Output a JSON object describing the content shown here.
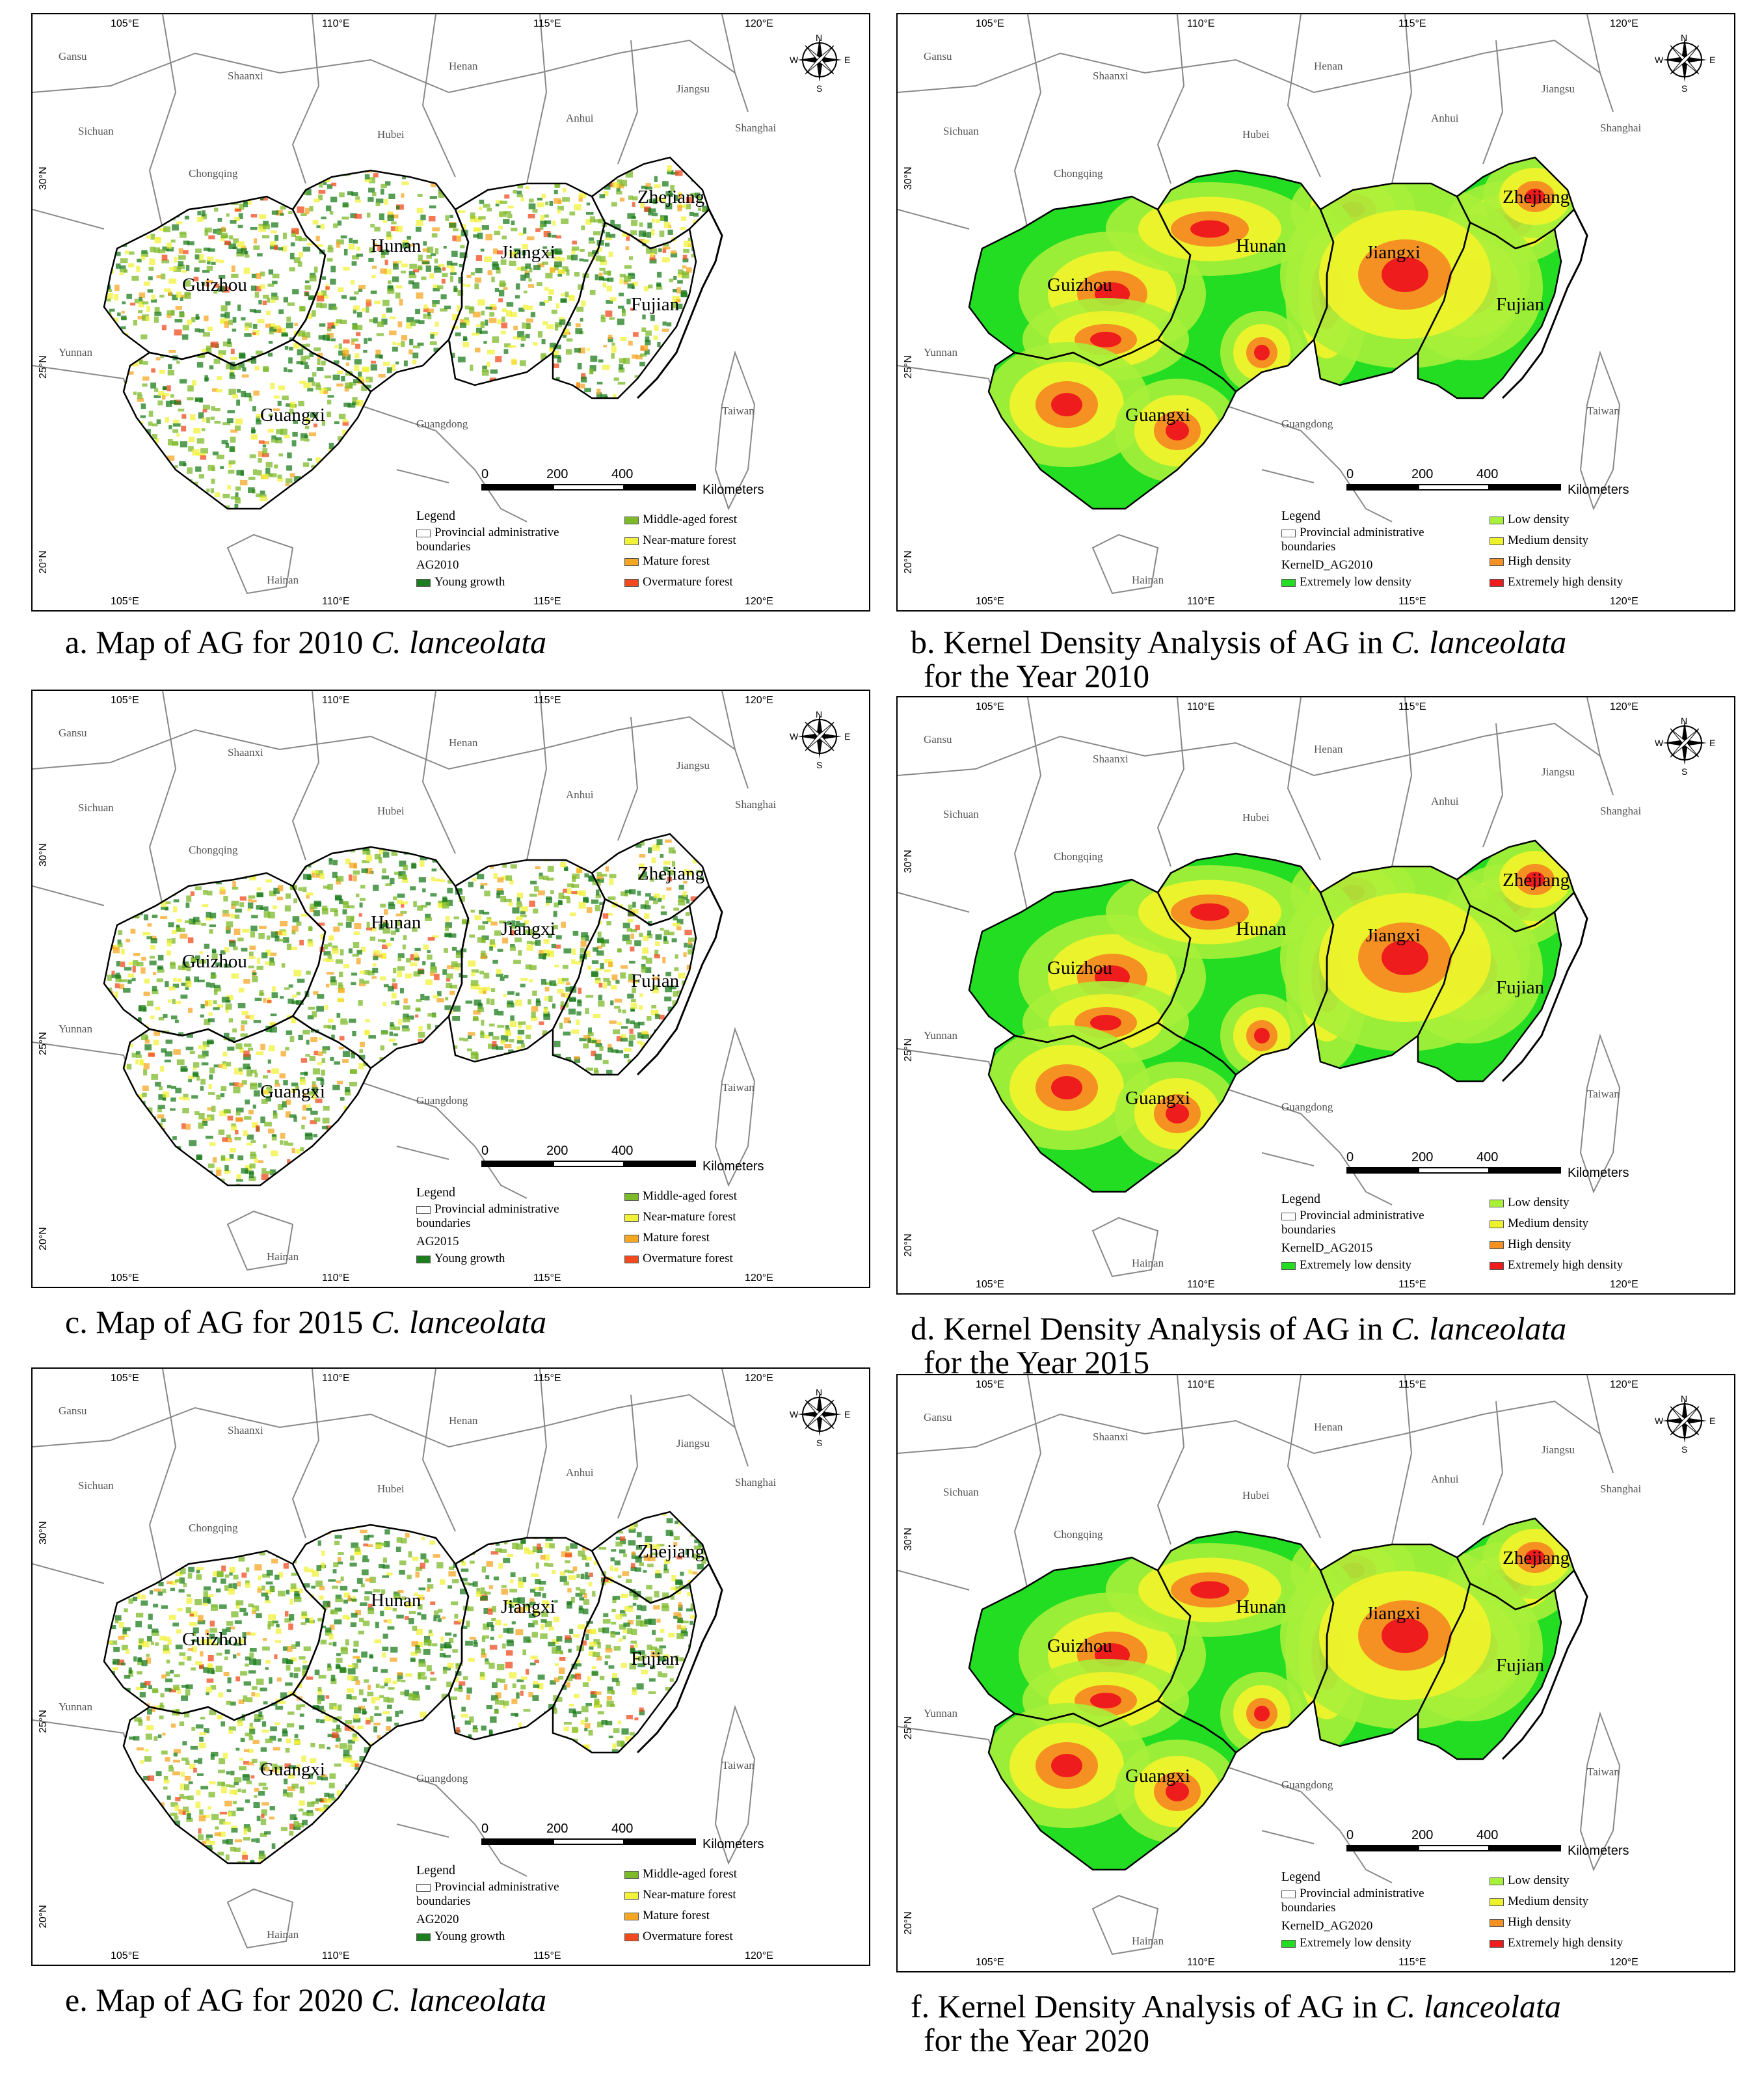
{
  "panels": [
    {
      "id": "a",
      "kind": "age",
      "year": "AG2010",
      "caption_prefix": "a. Map of AG for 2010 ",
      "caption_italic": "C. lanceolata",
      "caption_line2": ""
    },
    {
      "id": "b",
      "kind": "kd",
      "year": "KernelD_AG2010",
      "caption_prefix": "b. Kernel Density Analysis of AG in ",
      "caption_italic": "C. lanceolata",
      "caption_line2": "for the Year 2010"
    },
    {
      "id": "c",
      "kind": "age",
      "year": "AG2015",
      "caption_prefix": "c. Map of AG for 2015 ",
      "caption_italic": "C. lanceolata",
      "caption_line2": ""
    },
    {
      "id": "d",
      "kind": "kd",
      "year": "KernelD_AG2015",
      "caption_prefix": "d. Kernel Density Analysis of AG in ",
      "caption_italic": "C. lanceolata",
      "caption_line2": "for the Year 2015"
    },
    {
      "id": "e",
      "kind": "age",
      "year": "AG2020",
      "caption_prefix": "e. Map of AG for 2020 ",
      "caption_italic": "C. lanceolata",
      "caption_line2": ""
    },
    {
      "id": "f",
      "kind": "kd",
      "year": "KernelD_AG2020",
      "caption_prefix": "f. Kernel Density Analysis of AG in ",
      "caption_italic": "C. lanceolata",
      "caption_line2": "for the Year 2020"
    }
  ],
  "ticks": {
    "lon": [
      "105°E",
      "110°E",
      "115°E",
      "120°E"
    ],
    "lat": [
      "30°N",
      "25°N",
      "20°N"
    ]
  },
  "provinces_main": [
    "Guizhou",
    "Hunan",
    "Jiangxi",
    "Zhejiang",
    "Fujian",
    "Guangxi"
  ],
  "provinces_neighbor": [
    "Gansu",
    "Shaanxi",
    "Henan",
    "Jiangsu",
    "Anhui",
    "Sichuan",
    "Hubei",
    "Shanghai",
    "Chongqing",
    "Yunnan",
    "Guangdong",
    "Taiwan",
    "Hainan"
  ],
  "legend": {
    "title": "Legend",
    "boundary": "Provincial administrative boundaries",
    "age_classes": [
      {
        "label": "Young growth",
        "color": "#1e7d1e"
      },
      {
        "label": "Middle-aged forest",
        "color": "#7dba2a"
      },
      {
        "label": "Near-mature forest",
        "color": "#f2f23a"
      },
      {
        "label": "Mature forest",
        "color": "#f5a623"
      },
      {
        "label": "Overmature forest",
        "color": "#f04a1e"
      }
    ],
    "density_classes": [
      {
        "label": "Extremely low density",
        "color": "#22dd22"
      },
      {
        "label": "Low density",
        "color": "#a8f03a"
      },
      {
        "label": "Medium density",
        "color": "#eef22a"
      },
      {
        "label": "High density",
        "color": "#f59122"
      },
      {
        "label": "Extremely high density",
        "color": "#ee1c1c"
      }
    ]
  },
  "scale": {
    "labels": [
      "0",
      "200",
      "400"
    ],
    "unit": "Kilometers"
  },
  "compass": {
    "n": "N",
    "s": "S",
    "e": "E",
    "w": "W"
  }
}
